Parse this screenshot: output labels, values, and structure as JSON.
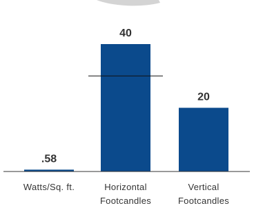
{
  "chart_data": {
    "type": "bar",
    "categories": [
      "Watts/Sq. ft.",
      "Horizontal Footcandles",
      "Vertical Footcandles"
    ],
    "values": [
      0.58,
      40,
      20
    ],
    "value_labels": [
      ".58",
      "40",
      "20"
    ],
    "color": "#0b4a8c",
    "ylim": [
      0,
      40
    ],
    "reference_line": {
      "category": 1,
      "value": 30
    }
  }
}
